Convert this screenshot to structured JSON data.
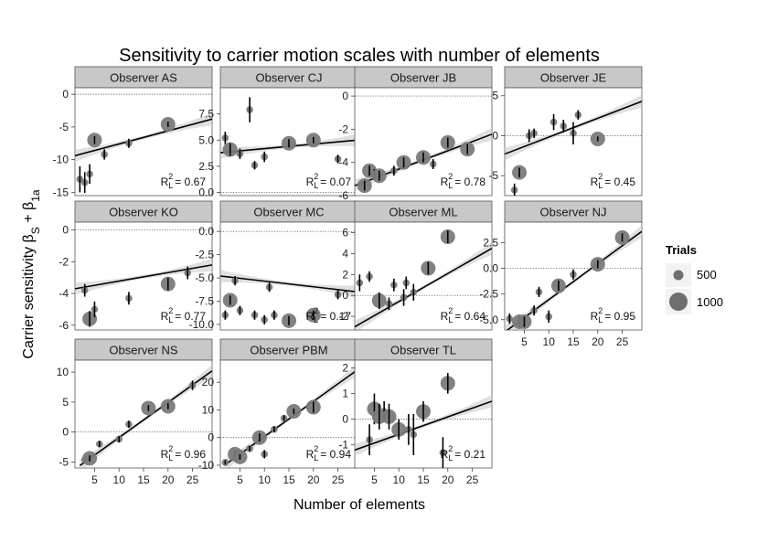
{
  "chart_data": {
    "type": "scatter",
    "title": "Sensitivity to carrier motion scales with number of elements",
    "xlabel": "Number of elements",
    "ylabel": "Carrier sensitivity βS + β1a",
    "ylabel_main": "Carrier sensitivity β",
    "ylabel_sub1": "S",
    "ylabel_plus": " + β",
    "ylabel_sub2": "1a",
    "x_ticks": [
      5,
      10,
      15,
      20,
      25
    ],
    "xlim": [
      1,
      29
    ],
    "legend": {
      "title": "Trials",
      "placement": "right",
      "entries": [
        {
          "label": "500",
          "size": 500
        },
        {
          "label": "1000",
          "size": 1000
        }
      ]
    },
    "r2_label": "R",
    "r2_sub": "L",
    "r2_sup": "2",
    "panels": [
      {
        "observer": "Observer AS",
        "r2": "= 0.67",
        "ylim": [
          -15.5,
          1
        ],
        "y_ticks": [
          0,
          -5,
          -10,
          -15
        ],
        "y_tick_labels": [
          "0",
          "-5",
          "-10",
          "-15"
        ],
        "fit": [
          [
            1,
            -9.4
          ],
          [
            29,
            -3.8
          ]
        ],
        "points": [
          {
            "x": 2,
            "y": -13,
            "err": 2.0,
            "trials": 500
          },
          {
            "x": 3,
            "y": -13.5,
            "err": 1.6,
            "trials": 500
          },
          {
            "x": 4,
            "y": -12.2,
            "err": 1.5,
            "trials": 500
          },
          {
            "x": 5,
            "y": -7,
            "err": 0.6,
            "trials": 1000
          },
          {
            "x": 7,
            "y": -9.2,
            "err": 0.8,
            "trials": 500
          },
          {
            "x": 12,
            "y": -7.5,
            "err": 0.7,
            "trials": 500
          },
          {
            "x": 20,
            "y": -4.6,
            "err": 0.4,
            "trials": 1000
          }
        ]
      },
      {
        "observer": "Observer CJ",
        "r2": "= 0.07",
        "ylim": [
          -0.3,
          10
        ],
        "y_ticks": [
          7.5,
          5,
          2.5,
          0
        ],
        "y_tick_labels": [
          "7.5",
          "5.0",
          "2.5",
          "0.0"
        ],
        "fit": [
          [
            1,
            3.8
          ],
          [
            29,
            5
          ]
        ],
        "points": [
          {
            "x": 2,
            "y": 5.2,
            "err": 0.6,
            "trials": 500
          },
          {
            "x": 3,
            "y": 4.1,
            "err": 0.6,
            "trials": 1000
          },
          {
            "x": 5,
            "y": 3.7,
            "err": 0.5,
            "trials": 500
          },
          {
            "x": 7,
            "y": 7.9,
            "err": 1.2,
            "trials": 500
          },
          {
            "x": 8,
            "y": 2.6,
            "err": 0.4,
            "trials": 500
          },
          {
            "x": 10,
            "y": 3.4,
            "err": 0.5,
            "trials": 500
          },
          {
            "x": 15,
            "y": 4.7,
            "err": 0.4,
            "trials": 1000
          },
          {
            "x": 20,
            "y": 5.0,
            "err": 0.3,
            "trials": 1000
          },
          {
            "x": 25,
            "y": 3.2,
            "err": 0.4,
            "trials": 500
          }
        ]
      },
      {
        "observer": "Observer JB",
        "r2": "= 0.78",
        "ylim": [
          -6,
          0.5
        ],
        "y_ticks": [
          0,
          -2,
          -4,
          -6
        ],
        "y_tick_labels": [
          "0",
          "-2",
          "-4",
          "-6"
        ],
        "fit": [
          [
            1,
            -5.4
          ],
          [
            29,
            -2.3
          ]
        ],
        "points": [
          {
            "x": 3,
            "y": -5.4,
            "err": 0.3,
            "trials": 1000
          },
          {
            "x": 4,
            "y": -4.5,
            "err": 0.3,
            "trials": 1000
          },
          {
            "x": 5,
            "y": -4.7,
            "err": 0.3,
            "trials": 500
          },
          {
            "x": 6,
            "y": -4.8,
            "err": 0.3,
            "trials": 1000
          },
          {
            "x": 9,
            "y": -4.5,
            "err": 0.3,
            "trials": 500
          },
          {
            "x": 11,
            "y": -4.0,
            "err": 0.3,
            "trials": 1000
          },
          {
            "x": 15,
            "y": -3.7,
            "err": 0.3,
            "trials": 1000
          },
          {
            "x": 17,
            "y": -4.1,
            "err": 0.3,
            "trials": 500
          },
          {
            "x": 20,
            "y": -2.8,
            "err": 0.3,
            "trials": 1000
          },
          {
            "x": 24,
            "y": -3.2,
            "err": 0.3,
            "trials": 1000
          }
        ]
      },
      {
        "observer": "Observer JE",
        "r2": "= 0.45",
        "ylim": [
          -7.5,
          6
        ],
        "y_ticks": [
          5,
          0,
          -5
        ],
        "y_tick_labels": [
          "5",
          "0",
          "-5"
        ],
        "fit": [
          [
            1,
            -2.3
          ],
          [
            29,
            4.3
          ]
        ],
        "points": [
          {
            "x": 3,
            "y": -6.8,
            "err": 0.8,
            "trials": 500
          },
          {
            "x": 4,
            "y": -4.6,
            "err": 0.6,
            "trials": 1000
          },
          {
            "x": 6,
            "y": 0.0,
            "err": 0.8,
            "trials": 500
          },
          {
            "x": 7,
            "y": 0.3,
            "err": 0.6,
            "trials": 500
          },
          {
            "x": 11,
            "y": 1.7,
            "err": 1.0,
            "trials": 500
          },
          {
            "x": 13,
            "y": 1.2,
            "err": 0.8,
            "trials": 500
          },
          {
            "x": 15,
            "y": 0.3,
            "err": 1.4,
            "trials": 500
          },
          {
            "x": 16,
            "y": 2.6,
            "err": 0.6,
            "trials": 500
          },
          {
            "x": 20,
            "y": -0.4,
            "err": 0.3,
            "trials": 1000
          }
        ]
      },
      {
        "observer": "Observer KO",
        "r2": "= 0.77",
        "ylim": [
          -6.3,
          0.5
        ],
        "y_ticks": [
          0,
          -2,
          -4,
          -6
        ],
        "y_tick_labels": [
          "0",
          "-2",
          "-4",
          "-6"
        ],
        "fit": [
          [
            1,
            -3.7
          ],
          [
            29,
            -2.2
          ]
        ],
        "points": [
          {
            "x": 3,
            "y": -3.8,
            "err": 0.4,
            "trials": 500
          },
          {
            "x": 4,
            "y": -5.6,
            "err": 0.5,
            "trials": 1000
          },
          {
            "x": 5,
            "y": -5.0,
            "err": 0.5,
            "trials": 500
          },
          {
            "x": 12,
            "y": -4.3,
            "err": 0.4,
            "trials": 500
          },
          {
            "x": 20,
            "y": -3.4,
            "err": 0.4,
            "trials": 1000
          },
          {
            "x": 24,
            "y": -2.7,
            "err": 0.4,
            "trials": 500
          }
        ]
      },
      {
        "observer": "Observer MC",
        "r2": "= 0.17",
        "ylim": [
          -10.6,
          1
        ],
        "y_ticks": [
          0,
          -2.5,
          -5,
          -7.5,
          -10
        ],
        "y_tick_labels": [
          "0.0",
          "-2.5",
          "-5.0",
          "-7.5",
          "-10.0"
        ],
        "fit": [
          [
            1,
            -4.8
          ],
          [
            29,
            -6.5
          ]
        ],
        "points": [
          {
            "x": 2,
            "y": -9.0,
            "err": 0.5,
            "trials": 500
          },
          {
            "x": 3,
            "y": -7.4,
            "err": 0.5,
            "trials": 1000
          },
          {
            "x": 5,
            "y": -8.5,
            "err": 0.5,
            "trials": 500
          },
          {
            "x": 4,
            "y": -5.3,
            "err": 0.5,
            "trials": 500
          },
          {
            "x": 8,
            "y": -9.0,
            "err": 0.5,
            "trials": 500
          },
          {
            "x": 10,
            "y": -9.5,
            "err": 0.5,
            "trials": 500
          },
          {
            "x": 12,
            "y": -9.0,
            "err": 0.5,
            "trials": 500
          },
          {
            "x": 11,
            "y": -6.0,
            "err": 0.5,
            "trials": 500
          },
          {
            "x": 15,
            "y": -9.6,
            "err": 0.5,
            "trials": 1000
          },
          {
            "x": 20,
            "y": -9.0,
            "err": 0.5,
            "trials": 1000
          },
          {
            "x": 25,
            "y": -6.8,
            "err": 0.5,
            "trials": 500
          }
        ]
      },
      {
        "observer": "Observer ML",
        "r2": "= 0.64",
        "ylim": [
          -3.3,
          7
        ],
        "y_ticks": [
          6,
          4,
          2,
          0,
          -2
        ],
        "y_tick_labels": [
          "6",
          "4",
          "2",
          "0",
          "-2"
        ],
        "fit": [
          [
            1,
            -3
          ],
          [
            29,
            4.5
          ]
        ],
        "points": [
          {
            "x": 2,
            "y": 1.2,
            "err": 0.8,
            "trials": 500
          },
          {
            "x": 4,
            "y": 1.8,
            "err": 0.5,
            "trials": 500
          },
          {
            "x": 6,
            "y": -0.5,
            "err": 0.8,
            "trials": 1000
          },
          {
            "x": 8,
            "y": -0.8,
            "err": 0.6,
            "trials": 500
          },
          {
            "x": 9,
            "y": 1.0,
            "err": 0.6,
            "trials": 500
          },
          {
            "x": 11,
            "y": -0.2,
            "err": 0.8,
            "trials": 500
          },
          {
            "x": 11.5,
            "y": 1.2,
            "err": 0.6,
            "trials": 500
          },
          {
            "x": 13,
            "y": 0.3,
            "err": 0.8,
            "trials": 500
          },
          {
            "x": 16,
            "y": 2.6,
            "err": 0.6,
            "trials": 1000
          },
          {
            "x": 20,
            "y": 5.6,
            "err": 0.6,
            "trials": 1000
          }
        ]
      },
      {
        "observer": "Observer NJ",
        "r2": "= 0.95",
        "ylim": [
          -6,
          4.5
        ],
        "y_ticks": [
          2.5,
          0,
          -2.5,
          -5
        ],
        "y_tick_labels": [
          "2.5",
          "0.0",
          "-2.5",
          "-5.0"
        ],
        "fit": [
          [
            1,
            -6.2
          ],
          [
            29,
            3.6
          ]
        ],
        "points": [
          {
            "x": 2,
            "y": -4.9,
            "err": 0.5,
            "trials": 500
          },
          {
            "x": 4,
            "y": -5.2,
            "err": 0.5,
            "trials": 1000
          },
          {
            "x": 5,
            "y": -5.2,
            "err": 0.5,
            "trials": 1000
          },
          {
            "x": 7,
            "y": -4.1,
            "err": 0.5,
            "trials": 500
          },
          {
            "x": 8,
            "y": -2.3,
            "err": 0.5,
            "trials": 500
          },
          {
            "x": 10,
            "y": -4.7,
            "err": 0.6,
            "trials": 500
          },
          {
            "x": 12,
            "y": -1.7,
            "err": 0.5,
            "trials": 1000
          },
          {
            "x": 15,
            "y": -0.6,
            "err": 0.5,
            "trials": 500
          },
          {
            "x": 20,
            "y": 0.4,
            "err": 0.4,
            "trials": 1000
          },
          {
            "x": 25,
            "y": 3.0,
            "err": 0.4,
            "trials": 1000
          }
        ]
      },
      {
        "observer": "Observer NS",
        "r2": "= 0.96",
        "ylim": [
          -6,
          12
        ],
        "y_ticks": [
          10,
          5,
          0,
          -5
        ],
        "y_tick_labels": [
          "10",
          "5",
          "0",
          "-5"
        ],
        "fit": [
          [
            2,
            -5.6
          ],
          [
            29,
            10.2
          ]
        ],
        "points": [
          {
            "x": 3,
            "y": -4.6,
            "err": 0.5,
            "trials": 500
          },
          {
            "x": 4,
            "y": -4.4,
            "err": 0.5,
            "trials": 1000
          },
          {
            "x": 6,
            "y": -2.0,
            "err": 0.5,
            "trials": 500
          },
          {
            "x": 10,
            "y": -1.2,
            "err": 0.5,
            "trials": 500
          },
          {
            "x": 12,
            "y": 1.3,
            "err": 0.6,
            "trials": 500
          },
          {
            "x": 16,
            "y": 4.0,
            "err": 0.5,
            "trials": 1000
          },
          {
            "x": 20,
            "y": 4.3,
            "err": 0.5,
            "trials": 1000
          },
          {
            "x": 25,
            "y": 7.8,
            "err": 0.8,
            "trials": 500
          }
        ]
      },
      {
        "observer": "Observer PBM",
        "r2": "= 0.94",
        "ylim": [
          -11,
          28
        ],
        "y_ticks": [
          20,
          10,
          0,
          -10
        ],
        "y_tick_labels": [
          "20",
          "10",
          "0",
          "-10"
        ],
        "fit": [
          [
            2,
            -9.8
          ],
          [
            29,
            24.5
          ]
        ],
        "points": [
          {
            "x": 2,
            "y": -9,
            "err": 0.8,
            "trials": 500
          },
          {
            "x": 4,
            "y": -6,
            "err": 1.0,
            "trials": 1000
          },
          {
            "x": 5,
            "y": -7,
            "err": 1.0,
            "trials": 1000
          },
          {
            "x": 7,
            "y": -4,
            "err": 1.0,
            "trials": 500
          },
          {
            "x": 9,
            "y": 0,
            "err": 1.5,
            "trials": 1000
          },
          {
            "x": 10,
            "y": -6,
            "err": 1.5,
            "trials": 500
          },
          {
            "x": 12,
            "y": 3,
            "err": 1.0,
            "trials": 500
          },
          {
            "x": 14,
            "y": 7,
            "err": 1.0,
            "trials": 500
          },
          {
            "x": 16,
            "y": 9.5,
            "err": 1.0,
            "trials": 1000
          },
          {
            "x": 20,
            "y": 11,
            "err": 2.0,
            "trials": 1000
          }
        ]
      },
      {
        "observer": "Observer TL",
        "r2": "= 0.21",
        "ylim": [
          -1.9,
          2.3
        ],
        "y_ticks": [
          2,
          1,
          0,
          -1
        ],
        "y_tick_labels": [
          "2",
          "1",
          "0",
          "-1"
        ],
        "fit": [
          [
            1,
            -1.2
          ],
          [
            29,
            0.7
          ]
        ],
        "points": [
          {
            "x": 4,
            "y": -0.8,
            "err": 0.6,
            "trials": 500
          },
          {
            "x": 5,
            "y": 0.4,
            "err": 0.6,
            "trials": 1000
          },
          {
            "x": 6,
            "y": 0.1,
            "err": 0.5,
            "trials": 1000
          },
          {
            "x": 7,
            "y": 0.3,
            "err": 0.4,
            "trials": 500
          },
          {
            "x": 8,
            "y": 0.1,
            "err": 0.5,
            "trials": 1000
          },
          {
            "x": 10,
            "y": -0.4,
            "err": 0.4,
            "trials": 1000
          },
          {
            "x": 12,
            "y": -0.4,
            "err": 0.6,
            "trials": 500
          },
          {
            "x": 13,
            "y": -0.6,
            "err": 0.8,
            "trials": 500
          },
          {
            "x": 15,
            "y": 0.3,
            "err": 0.4,
            "trials": 1000
          },
          {
            "x": 19,
            "y": -1.3,
            "err": 0.6,
            "trials": 500
          },
          {
            "x": 20,
            "y": 1.4,
            "err": 0.4,
            "trials": 1000
          }
        ]
      }
    ]
  }
}
